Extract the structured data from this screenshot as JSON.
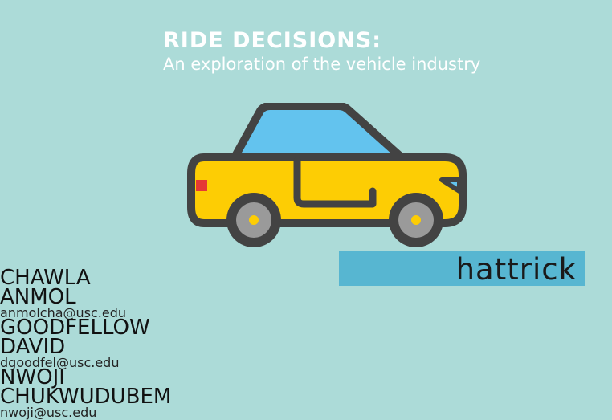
{
  "header": {
    "title": "RIDE DECISIONS:",
    "subtitle": "An exploration of the vehicle industry"
  },
  "illustration": {
    "icon": "car-icon"
  },
  "team": {
    "name": "hattrick"
  },
  "members": [
    {
      "last": "CHAWLA",
      "first": "ANMOL",
      "email": "anmolcha@usc.edu"
    },
    {
      "last": "GOODFELLOW",
      "first": "DAVID",
      "email": "dgoodfel@usc.edu"
    },
    {
      "last": "NWOJI",
      "first": "CHUKWUDUBEM",
      "email": "nwoji@usc.edu"
    }
  ],
  "colors": {
    "background": "#acdbd8",
    "banner": "#57b6d1",
    "car_body": "#fdcd04",
    "car_window": "#63c3ee",
    "car_outline": "#434343"
  }
}
